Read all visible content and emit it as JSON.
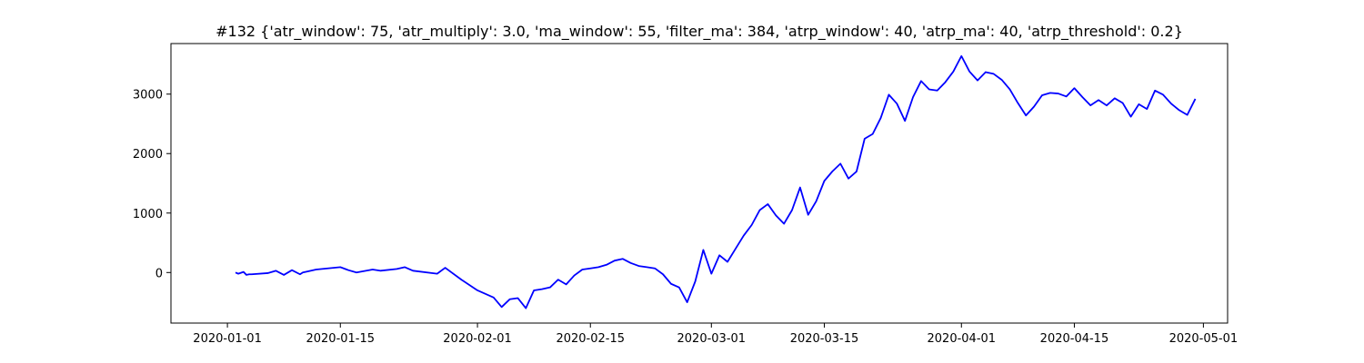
{
  "chart_data": {
    "type": "line",
    "title": "#132 {'atr_window': 75, 'atr_multiply': 3.0, 'ma_window': 55, 'filter_ma': 384, 'atrp_window': 40, 'atrp_ma': 40, 'atrp_threshold': 0.2}",
    "xlabel": "",
    "ylabel": "",
    "xlim": [
      "2019-12-25",
      "2020-05-04"
    ],
    "ylim": [
      -850,
      3850
    ],
    "grid": false,
    "color": "#0000ff",
    "x_ticks": [
      "2020-01-01",
      "2020-01-15",
      "2020-02-01",
      "2020-02-15",
      "2020-03-01",
      "2020-03-15",
      "2020-04-01",
      "2020-04-15",
      "2020-05-01"
    ],
    "y_ticks": [
      0,
      1000,
      2000,
      3000
    ],
    "series": [
      {
        "x": [
          "2020-01-02",
          "2020-01-02",
          "2020-01-03",
          "2020-01-03",
          "2020-01-03",
          "2020-01-04",
          "2020-01-06",
          "2020-01-07",
          "2020-01-08",
          "2020-01-09",
          "2020-01-10",
          "2020-01-10",
          "2020-01-11",
          "2020-01-12",
          "2020-01-15",
          "2020-01-16",
          "2020-01-17",
          "2020-01-19",
          "2020-01-20",
          "2020-01-22",
          "2020-01-23",
          "2020-01-24",
          "2020-01-27",
          "2020-01-28",
          "2020-01-30",
          "2020-02-01",
          "2020-02-03",
          "2020-02-04",
          "2020-02-05",
          "2020-02-06",
          "2020-02-07",
          "2020-02-08",
          "2020-02-09",
          "2020-02-10",
          "2020-02-11",
          "2020-02-12",
          "2020-02-13",
          "2020-02-14",
          "2020-02-15",
          "2020-02-16",
          "2020-02-17",
          "2020-02-18",
          "2020-02-19",
          "2020-02-20",
          "2020-02-21",
          "2020-02-22",
          "2020-02-23",
          "2020-02-24",
          "2020-02-25",
          "2020-02-26",
          "2020-02-27",
          "2020-02-28",
          "2020-02-29",
          "2020-03-01",
          "2020-03-02",
          "2020-03-03",
          "2020-03-04",
          "2020-03-05",
          "2020-03-06",
          "2020-03-07",
          "2020-03-08",
          "2020-03-09",
          "2020-03-10",
          "2020-03-11",
          "2020-03-12",
          "2020-03-13",
          "2020-03-14",
          "2020-03-15",
          "2020-03-16",
          "2020-03-17",
          "2020-03-18",
          "2020-03-19",
          "2020-03-20",
          "2020-03-21",
          "2020-03-22",
          "2020-03-23",
          "2020-03-24",
          "2020-03-25",
          "2020-03-26",
          "2020-03-27",
          "2020-03-28",
          "2020-03-29",
          "2020-03-30",
          "2020-03-31",
          "2020-04-01",
          "2020-04-02",
          "2020-04-03",
          "2020-04-04",
          "2020-04-05",
          "2020-04-06",
          "2020-04-07",
          "2020-04-08",
          "2020-04-09",
          "2020-04-10",
          "2020-04-11",
          "2020-04-12",
          "2020-04-13",
          "2020-04-14",
          "2020-04-15",
          "2020-04-16",
          "2020-04-17",
          "2020-04-18",
          "2020-04-19",
          "2020-04-20",
          "2020-04-21",
          "2020-04-22",
          "2020-04-23",
          "2020-04-24",
          "2020-04-25",
          "2020-04-26",
          "2020-04-27",
          "2020-04-28",
          "2020-04-29",
          "2020-04-30"
        ],
        "values": [
          0,
          -20,
          10,
          -40,
          -30,
          -30,
          -10,
          30,
          -40,
          40,
          -30,
          0,
          20,
          50,
          90,
          40,
          0,
          50,
          30,
          60,
          90,
          30,
          -20,
          80,
          -120,
          -300,
          -420,
          -580,
          -450,
          -430,
          -600,
          -300,
          -280,
          -250,
          -120,
          -200,
          -50,
          50,
          70,
          90,
          130,
          200,
          230,
          160,
          110,
          90,
          70,
          -30,
          -190,
          -250,
          -500,
          -150,
          380,
          -20,
          290,
          180,
          400,
          620,
          800,
          1050,
          1150,
          960,
          820,
          1050,
          1430,
          970,
          1200,
          1540,
          1700,
          1830,
          1580,
          1700,
          2250,
          2330,
          2600,
          2990,
          2840,
          2550,
          2950,
          3220,
          3080,
          3060,
          3200,
          3380,
          3640,
          3380,
          3230,
          3370,
          3340,
          3240,
          3080,
          2850,
          2640,
          2790,
          2980,
          3020,
          3010,
          2960,
          3100,
          2950,
          2810,
          2900,
          2810,
          2930,
          2850,
          2620,
          2830,
          2750,
          3060,
          2990,
          2840,
          2730,
          2650,
          2920
        ]
      }
    ]
  }
}
